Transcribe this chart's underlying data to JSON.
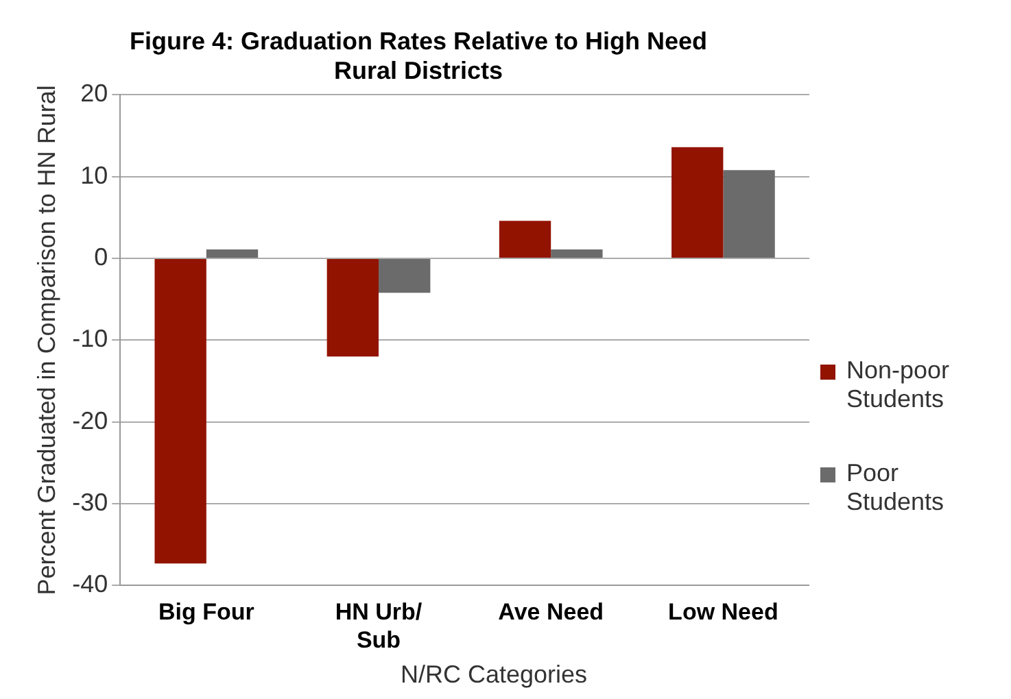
{
  "chart_data": {
    "type": "bar",
    "title": "Figure 4: Graduation Rates Relative to High Need Rural Districts",
    "xlabel": "N/RC Categories",
    "ylabel": "Percent Graduated in Comparison to HN Rural",
    "categories": [
      "Big Four",
      "HN Urb/ Sub",
      "Ave Need",
      "Low Need"
    ],
    "series": [
      {
        "name": "Non-poor Students",
        "color": "#921300",
        "values": [
          -37.3,
          -12.0,
          4.6,
          13.6
        ]
      },
      {
        "name": "Poor Students",
        "color": "#6b6b6b",
        "values": [
          1.1,
          -4.2,
          1.1,
          10.8
        ]
      }
    ],
    "ylim": [
      -40,
      20
    ],
    "yticks": [
      -40,
      -30,
      -20,
      -10,
      0,
      10,
      20
    ],
    "grid": "y",
    "legend": "right"
  }
}
